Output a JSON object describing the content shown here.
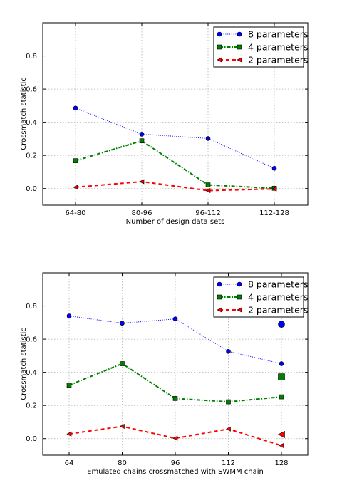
{
  "chart_data": [
    {
      "type": "line",
      "categories": [
        "64-80",
        "80-96",
        "96-112",
        "112-128"
      ],
      "xlabel": "Number of design data sets",
      "ylabel": "Crossmatch statistic",
      "ylim": [
        -0.1,
        1.0
      ],
      "yticks": [
        "0.0",
        "0.2",
        "0.4",
        "0.6",
        "0.8"
      ],
      "grid": true,
      "legend_position": "top-right",
      "series": [
        {
          "name": "8 parameters",
          "values": [
            0.485,
            0.328,
            0.302,
            0.122
          ],
          "color": "#0000ff",
          "marker": "circle"
        },
        {
          "name": "4 parameters",
          "values": [
            0.168,
            0.288,
            0.022,
            0.002
          ],
          "color": "#008000",
          "marker": "square"
        },
        {
          "name": "2 parameters",
          "values": [
            0.008,
            0.042,
            -0.012,
            -0.002
          ],
          "color": "#ff0000",
          "marker": "triangle-left"
        }
      ]
    },
    {
      "type": "line",
      "categories": [
        "64",
        "80",
        "96",
        "112",
        "128"
      ],
      "xlabel": "Emulated chains crossmatched with SWMM chain",
      "ylabel": "Crossmatch statistic",
      "ylim": [
        -0.1,
        1.0
      ],
      "yticks": [
        "0.0",
        "0.2",
        "0.4",
        "0.6",
        "0.8"
      ],
      "grid": true,
      "legend_position": "top-right",
      "series": [
        {
          "name": "8 parameters",
          "values": [
            0.74,
            0.696,
            0.722,
            0.526,
            0.452
          ],
          "color": "#0000ff",
          "marker": "circle"
        },
        {
          "name": "4 parameters",
          "values": [
            0.322,
            0.452,
            0.242,
            0.222,
            0.252
          ],
          "color": "#008000",
          "marker": "square"
        },
        {
          "name": "2 parameters",
          "values": [
            0.028,
            0.074,
            0.002,
            0.058,
            -0.042
          ],
          "color": "#ff0000",
          "marker": "triangle-left"
        }
      ],
      "highlight_points": [
        {
          "x": "128",
          "y": 0.69,
          "color": "#0000ff",
          "marker": "circle"
        },
        {
          "x": "128",
          "y": 0.372,
          "color": "#008000",
          "marker": "square"
        },
        {
          "x": "128",
          "y": 0.025,
          "color": "#ff0000",
          "marker": "triangle-left"
        }
      ]
    }
  ]
}
